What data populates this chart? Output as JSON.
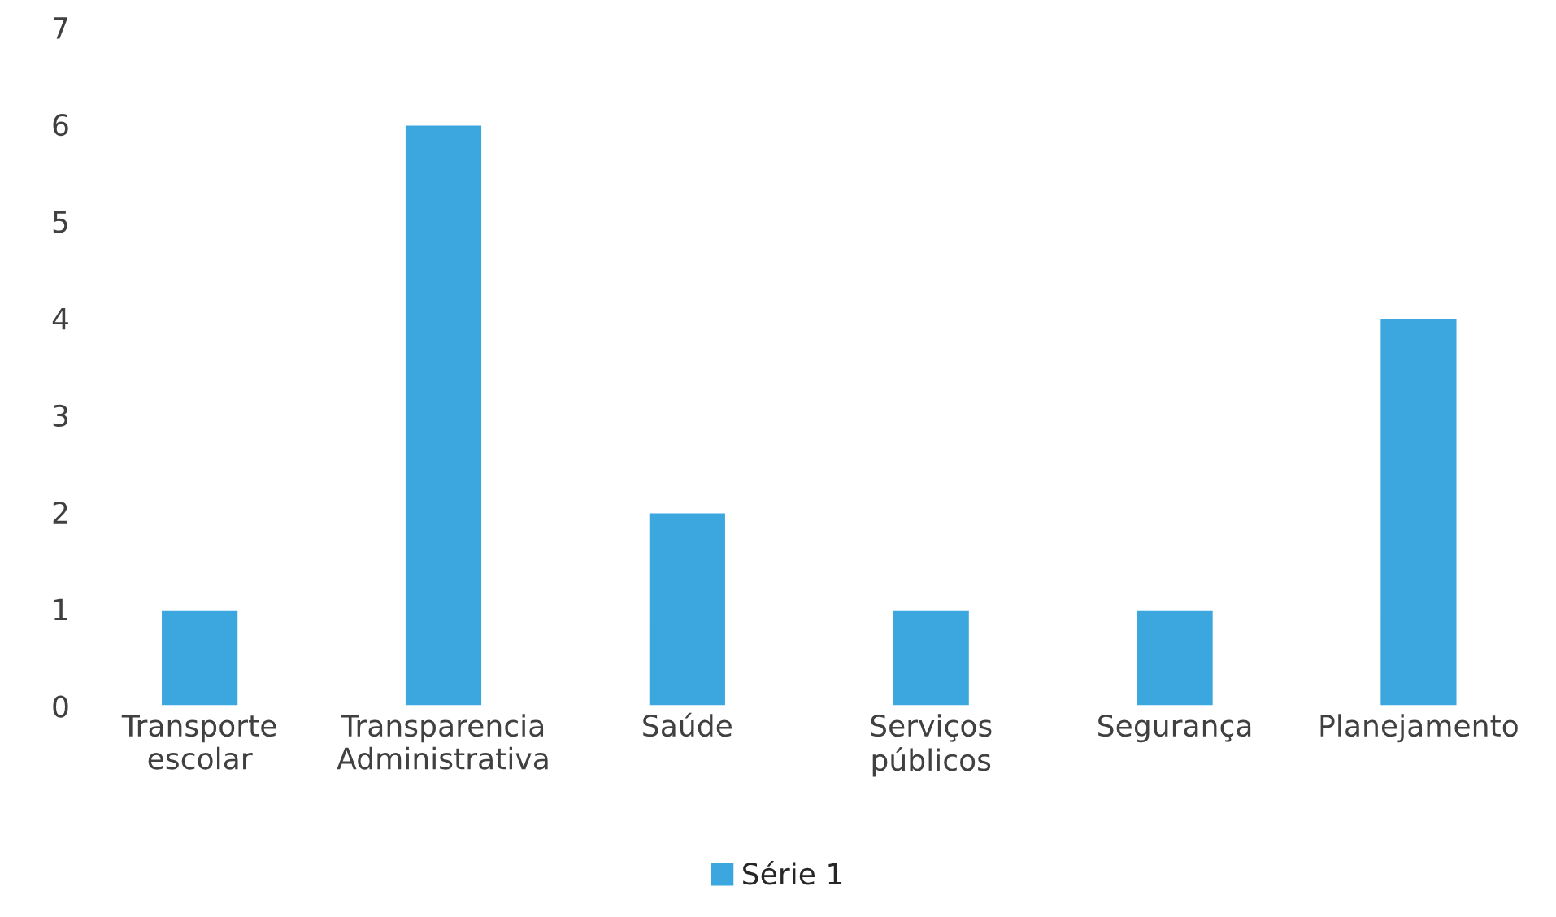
{
  "chart_data": {
    "type": "bar",
    "categories": [
      "Transporte\nescolar",
      "Transparencia\nAdministrativa",
      "Saúde",
      "Serviços\npúblicos",
      "Segurança",
      "Planejamento"
    ],
    "series": [
      {
        "name": "Série 1",
        "color": "#3ba7de",
        "values": [
          1,
          6,
          2,
          1,
          1,
          4
        ]
      }
    ],
    "ylim": [
      0,
      7
    ],
    "yticks": [
      0,
      1,
      2,
      3,
      4,
      5,
      6,
      7
    ],
    "grid": false,
    "legend": "bottom"
  }
}
